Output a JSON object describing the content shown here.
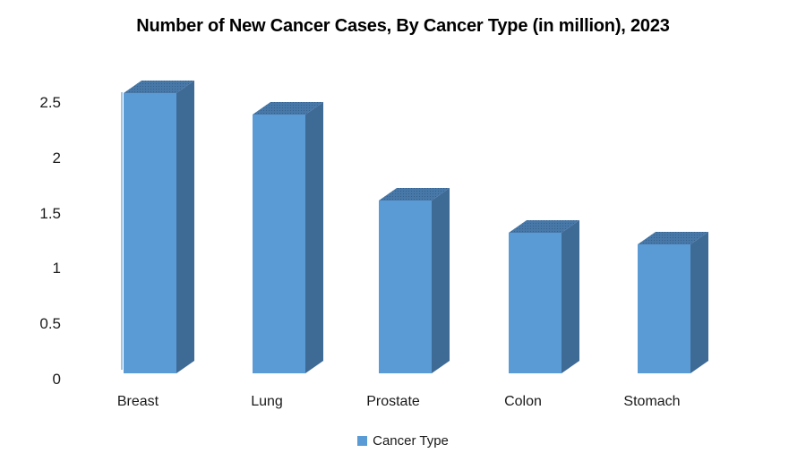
{
  "chart_data": {
    "type": "bar",
    "style": "3d-column",
    "title": "Number of New Cancer Cases, By Cancer Type (in million), 2023",
    "categories": [
      "Breast",
      "Lung",
      "Prostate",
      "Colon",
      "Stomach"
    ],
    "series": [
      {
        "name": "Cancer Type",
        "values": [
          2.6,
          2.4,
          1.6,
          1.3,
          1.2
        ]
      }
    ],
    "xlabel": "",
    "ylabel": "",
    "ylim": [
      0,
      2.5
    ],
    "ytick_labels": [
      "0",
      "0.5",
      "1",
      "1.5",
      "2",
      "2.5"
    ],
    "ytick_values": [
      0,
      0.5,
      1,
      1.5,
      2,
      2.5
    ],
    "grid": false,
    "legend": {
      "label": "Cancer Type",
      "position": "bottom"
    },
    "colors": {
      "bar_front": "#5B9BD5",
      "bar_side": "#3E6A96",
      "bar_top": "#4878A8",
      "bar_top_dots": "#35618C",
      "axis_line": "#9DC3E6",
      "text": "#000000",
      "background": "#FFFFFF"
    }
  }
}
